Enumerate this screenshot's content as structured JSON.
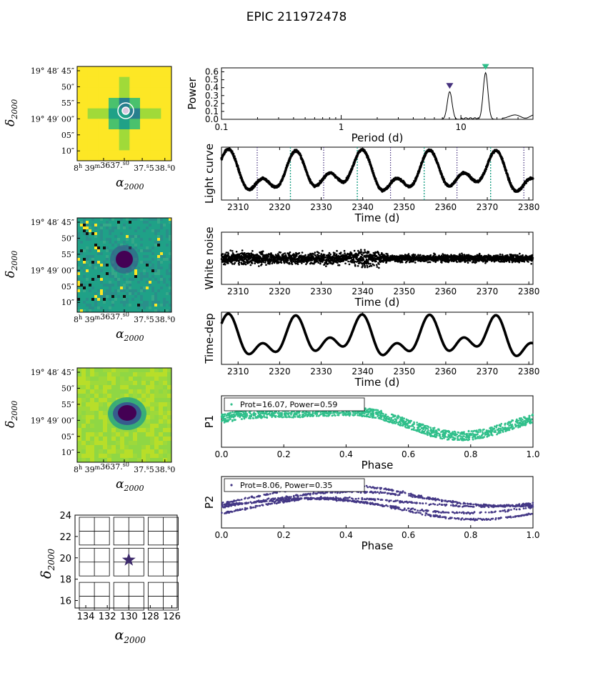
{
  "page_title": "EPIC 211972478",
  "colors": {
    "yellow": "#fde725",
    "green1": "#a0da39",
    "green2": "#4ac16d",
    "teal": "#1fa187",
    "teal2": "#277f8e",
    "blue": "#365c8d",
    "purple": "#46327e",
    "dark": "#440154",
    "p1": "#2fbf8a",
    "p2": "#433785"
  },
  "stamp_labels": {
    "dec_ticks": [
      "19° 48′ 45″",
      "50″",
      "55″",
      "19° 49′ 00″",
      "05″",
      "10″"
    ],
    "ra_ticks": [
      "8h 39m 36s",
      "37.s0",
      "37.s5",
      "38.s0"
    ],
    "ra_first": "8",
    "ra_h": "h",
    "ra_39": "39",
    "ra_m": "m",
    "ra_3637": "3637.",
    "ra_s0": "s0",
    "ra_375": "37.",
    "ra_5": "5",
    "ra_380": "38.",
    "ra_0": "0",
    "ylabel": "δ2000",
    "ylabel_main": "δ",
    "ylabel_sub": "2000",
    "xlabel_main": "α",
    "xlabel_sub": "2000"
  },
  "footprint": {
    "yticks": [
      "24",
      "22",
      "20",
      "18",
      "16"
    ],
    "xticks": [
      "134",
      "132",
      "130",
      "128",
      "126"
    ],
    "target_ra": 130.0,
    "target_dec": 19.8,
    "x_range": [
      135,
      125.5
    ],
    "y_range": [
      15.3,
      24
    ]
  },
  "chart_data": [
    {
      "type": "line",
      "name": "periodogram",
      "xscale": "log",
      "xlim": [
        0.1,
        40
      ],
      "ylim": [
        0,
        0.65
      ],
      "xticks": [
        "0.1",
        "1",
        "10"
      ],
      "yticks": [
        "0.0",
        "0.1",
        "0.2",
        "0.3",
        "0.4",
        "0.5",
        "0.6"
      ],
      "xlabel": "Period (d)",
      "ylabel": "Power",
      "peaks": [
        {
          "period": 8.06,
          "power": 0.35,
          "color": "#46327e"
        },
        {
          "period": 16.07,
          "power": 0.59,
          "color": "#2fbf8a"
        }
      ]
    },
    {
      "type": "scatter",
      "name": "light_curve",
      "xlim": [
        2306,
        2381
      ],
      "xticks": [
        "2310",
        "2320",
        "2330",
        "2340",
        "2350",
        "2360",
        "2370",
        "2380"
      ],
      "xlabel": "Time (d)",
      "ylabel": "Light curve",
      "markers_p1": [
        2322.6,
        2338.7,
        2354.8,
        2370.8
      ],
      "markers_p2": [
        2314.6,
        2330.6,
        2346.7,
        2362.7,
        2378.8
      ]
    },
    {
      "type": "scatter",
      "name": "white_noise",
      "xlim": [
        2306,
        2381
      ],
      "xticks": [
        "2310",
        "2320",
        "2330",
        "2340",
        "2350",
        "2360",
        "2370",
        "2380"
      ],
      "xlabel": "Time (d)",
      "ylabel": "White noise"
    },
    {
      "type": "line",
      "name": "time_dep",
      "xlim": [
        2306,
        2381
      ],
      "xticks": [
        "2310",
        "2320",
        "2330",
        "2340",
        "2350",
        "2360",
        "2370",
        "2380"
      ],
      "xlabel": "Time (d)",
      "ylabel": "Time-dep"
    },
    {
      "type": "scatter",
      "name": "phase_p1",
      "xlim": [
        0,
        1
      ],
      "xticks": [
        "0.0",
        "0.2",
        "0.4",
        "0.6",
        "0.8",
        "1.0"
      ],
      "xlabel": "Phase",
      "ylabel": "P1",
      "legend": "Prot=16.07, Power=0.59",
      "color": "#2fbf8a"
    },
    {
      "type": "scatter",
      "name": "phase_p2",
      "xlim": [
        0,
        1
      ],
      "xticks": [
        "0.0",
        "0.2",
        "0.4",
        "0.6",
        "0.8",
        "1.0"
      ],
      "xlabel": "Phase",
      "ylabel": "P2",
      "legend": "Prot=8.06, Power=0.35",
      "color": "#433785"
    }
  ]
}
